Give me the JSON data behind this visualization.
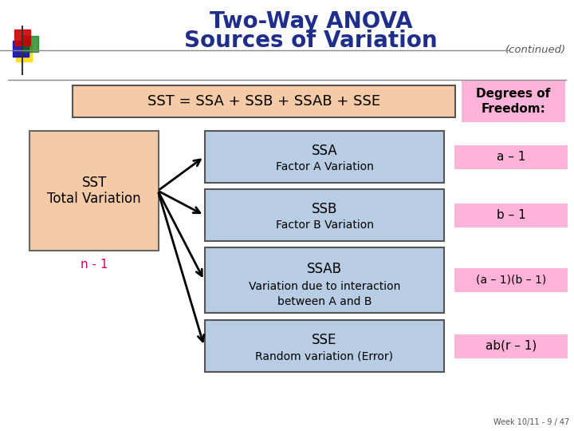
{
  "title_line1": "Two-Way ANOVA",
  "title_line2": "Sources of Variation",
  "title_color": "#1F2E8B",
  "title_fontsize": 20,
  "continued_text": "(continued)",
  "continued_color": "#555555",
  "background_color": "#ffffff",
  "equation_text": "SST = SSA + SSB + SSAB + SSE",
  "equation_box_color": "#F5CBA7",
  "equation_box_edge": "#555555",
  "equation_text_color": "#000000",
  "equation_fontsize": 13,
  "sst_box": {
    "text_line1": "SST",
    "text_line2": "Total Variation",
    "color": "#F5CBA7",
    "edge": "#666666",
    "text_color": "#000000",
    "fontsize": 12,
    "label": "n - 1",
    "label_color": "#CC0066"
  },
  "right_boxes": [
    {
      "title": "SSA",
      "subtitle": "Factor A Variation",
      "color": "#B8CCE4",
      "edge": "#555555",
      "text_color": "#000000",
      "title_fontsize": 12,
      "subtitle_fontsize": 10,
      "dof": "a – 1",
      "dof_color": "#FFB3D9",
      "dof_fontsize": 11
    },
    {
      "title": "SSB",
      "subtitle": "Factor B Variation",
      "color": "#B8CCE4",
      "edge": "#555555",
      "text_color": "#000000",
      "title_fontsize": 12,
      "subtitle_fontsize": 10,
      "dof": "b – 1",
      "dof_color": "#FFB3D9",
      "dof_fontsize": 11
    },
    {
      "title": "SSAB",
      "subtitle": "Variation due to interaction\nbetween A and B",
      "color": "#B8CCE4",
      "edge": "#555555",
      "text_color": "#000000",
      "title_fontsize": 12,
      "subtitle_fontsize": 10,
      "dof": "(a – 1)(b – 1)",
      "dof_color": "#FFB3D9",
      "dof_fontsize": 10
    },
    {
      "title": "SSE",
      "subtitle": "Random variation (Error)",
      "color": "#B8CCE4",
      "edge": "#555555",
      "text_color": "#000000",
      "title_fontsize": 12,
      "subtitle_fontsize": 10,
      "dof": "ab(r – 1)",
      "dof_color": "#FFB3D9",
      "dof_fontsize": 11
    }
  ],
  "dof_header": "Degrees of\nFreedom:",
  "dof_header_color": "#FFB3D9",
  "dof_header_fontsize": 11,
  "footer_text": "Week 10/11 - 9 / 47",
  "footer_color": "#555555",
  "footer_fontsize": 7,
  "logo_colors": [
    "#CC0000",
    "#0000BB",
    "#007700",
    "#FFDD00"
  ],
  "sep_line_color": "#888888"
}
